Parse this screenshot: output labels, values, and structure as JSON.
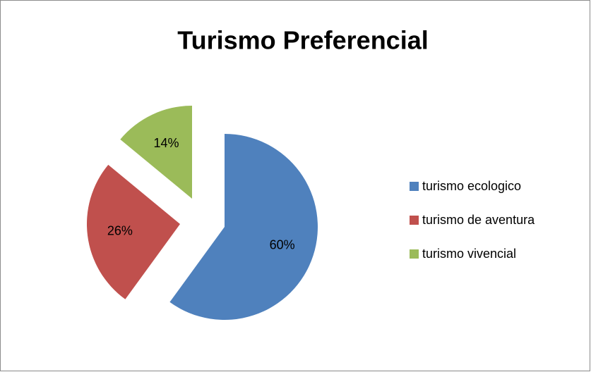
{
  "chart_data": {
    "type": "pie",
    "title": "Turismo Preferencial",
    "categories": [
      "turismo ecologico",
      "turismo de aventura",
      "turismo vivencial"
    ],
    "values": [
      60,
      26,
      14
    ],
    "value_labels": [
      "60%",
      "26%",
      "14%"
    ],
    "colors": [
      "#4f81bd",
      "#c0504d",
      "#9bbb59"
    ],
    "legend": "right"
  }
}
